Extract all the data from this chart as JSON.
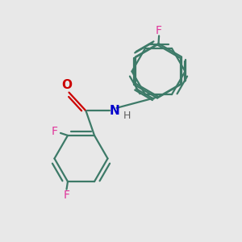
{
  "bg_color": "#e8e8e8",
  "bond_color": "#3d7a68",
  "O_color": "#cc0000",
  "N_color": "#0000cc",
  "F_color": "#e0359a",
  "H_color": "#606060",
  "lw": 1.6,
  "figsize": [
    3.0,
    3.0
  ],
  "dpi": 100,
  "xlim": [
    0,
    10
  ],
  "ylim": [
    0,
    10
  ]
}
